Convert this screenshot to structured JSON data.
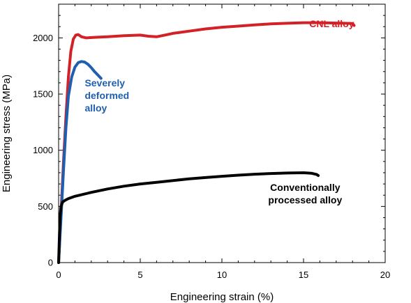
{
  "chart_data": {
    "type": "line",
    "xlabel": "Engineering strain  (%)",
    "ylabel": "Engineering stress (MPa)",
    "xlim": [
      0,
      20
    ],
    "ylim": [
      0,
      2300
    ],
    "xticks": [
      0,
      5,
      10,
      15,
      20
    ],
    "yticks": [
      0,
      500,
      1000,
      1500,
      2000
    ],
    "grid": false,
    "series": [
      {
        "name": "CNL alloy",
        "color": "#d42027",
        "x": [
          0,
          0.15,
          0.3,
          0.45,
          0.6,
          0.75,
          0.9,
          1.05,
          1.2,
          1.4,
          1.7,
          2.2,
          3.0,
          4.0,
          5.0,
          5.5,
          6.0,
          6.5,
          7.0,
          8.0,
          9.0,
          10.0,
          11.0,
          12.0,
          13.0,
          14.0,
          15.0,
          16.0,
          17.0,
          17.5,
          18.0,
          18.1
        ],
        "y": [
          0,
          450,
          900,
          1300,
          1650,
          1880,
          1990,
          2025,
          2030,
          2010,
          2000,
          2005,
          2010,
          2020,
          2025,
          2015,
          2010,
          2025,
          2040,
          2060,
          2080,
          2095,
          2105,
          2115,
          2125,
          2130,
          2135,
          2135,
          2132,
          2130,
          2128,
          2110
        ]
      },
      {
        "name": "Severely deformed alloy",
        "color": "#1f5fb0",
        "x": [
          0,
          0.15,
          0.3,
          0.45,
          0.6,
          0.8,
          1.0,
          1.2,
          1.4,
          1.6,
          1.8,
          2.0,
          2.2,
          2.4,
          2.6
        ],
        "y": [
          0,
          400,
          820,
          1200,
          1480,
          1650,
          1740,
          1780,
          1790,
          1785,
          1765,
          1735,
          1700,
          1670,
          1640
        ]
      },
      {
        "name": "Conventionally processed alloy",
        "color": "#000000",
        "x": [
          0,
          0.05,
          0.1,
          0.15,
          0.25,
          0.4,
          0.6,
          1.0,
          2.0,
          3.0,
          4.0,
          5.0,
          6.0,
          7.0,
          8.0,
          9.0,
          10.0,
          11.0,
          12.0,
          13.0,
          14.0,
          15.0,
          15.5,
          15.8,
          15.9
        ],
        "y": [
          0,
          250,
          420,
          500,
          540,
          555,
          570,
          590,
          625,
          655,
          680,
          700,
          715,
          730,
          745,
          757,
          768,
          778,
          787,
          793,
          797,
          800,
          795,
          785,
          775
        ]
      }
    ],
    "annotations": [
      {
        "lines": [
          "CNL alloy"
        ],
        "color": "#d42027",
        "at": [
          18.1,
          2095
        ],
        "align": "end"
      },
      {
        "lines": [
          "Severely",
          "deformed",
          "alloy"
        ],
        "color": "#1f5fb0",
        "at": [
          1.6,
          1570
        ],
        "align": "start"
      },
      {
        "lines": [
          "Conventionally",
          "processed alloy"
        ],
        "color": "#000000",
        "at": [
          15.1,
          640
        ],
        "align": "middle"
      }
    ]
  }
}
